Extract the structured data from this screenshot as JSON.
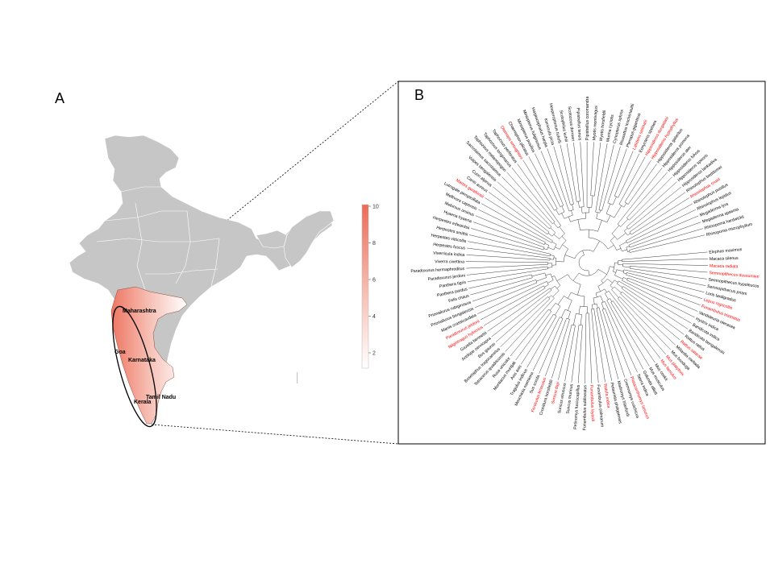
{
  "panels": {
    "a_label": "A",
    "b_label": "B"
  },
  "map": {
    "state_labels": [
      "Maharashtra",
      "Goa",
      "Karnataka",
      "Tamil Nadu",
      "Kerala"
    ],
    "colorbar": {
      "ticks": [
        "10",
        "8",
        "6",
        "4",
        "2"
      ],
      "min": 1,
      "max": 10
    }
  },
  "tree": {
    "colors": {
      "normal": "#000000",
      "highlight": "#ff0000"
    },
    "species": [
      {
        "name": "Elephas maximus",
        "hl": false
      },
      {
        "name": "Macaca silenus",
        "hl": false
      },
      {
        "name": "Macaca radiata",
        "hl": true
      },
      {
        "name": "Semnopithecus dussumieri",
        "hl": true
      },
      {
        "name": "Semnopithecus hypoleucos",
        "hl": false
      },
      {
        "name": "Semnopithecus priam",
        "hl": false
      },
      {
        "name": "Loris tardigradus",
        "hl": false
      },
      {
        "name": "Lepus nigricollis",
        "hl": true
      },
      {
        "name": "Funambulus tristriatus",
        "hl": true
      },
      {
        "name": "Vandeleuria oleracea",
        "hl": false
      },
      {
        "name": "Hystrix indica",
        "hl": false
      },
      {
        "name": "Bandicota indica",
        "hl": false
      },
      {
        "name": "Bandicota bengalensis",
        "hl": false
      },
      {
        "name": "Rattus rattus",
        "hl": false
      },
      {
        "name": "Rattus satarae",
        "hl": true
      },
      {
        "name": "Millardia meltada",
        "hl": false
      },
      {
        "name": "Mus booduga",
        "hl": false
      },
      {
        "name": "Mus platythrix",
        "hl": true
      },
      {
        "name": "Mus famulus",
        "hl": true
      },
      {
        "name": "Mus cookii",
        "hl": false
      },
      {
        "name": "Mus musculus",
        "hl": false
      },
      {
        "name": "Golunda ellioti",
        "hl": false
      },
      {
        "name": "Tatera indica",
        "hl": false
      },
      {
        "name": "Platacanthomys lasiurus",
        "hl": true
      },
      {
        "name": "Cremnomys cutchicus",
        "hl": false
      },
      {
        "name": "Madromys blanfordi",
        "hl": false
      },
      {
        "name": "Petaurista philippensis",
        "hl": false
      },
      {
        "name": "Ratufa indica",
        "hl": true
      },
      {
        "name": "Funambulus palmarum",
        "hl": false
      },
      {
        "name": "Funambulus layardi",
        "hl": true
      },
      {
        "name": "Funambulus sublineatus",
        "hl": false
      },
      {
        "name": "Petinomys fuscocapillus",
        "hl": false
      },
      {
        "name": "Suncus murinus",
        "hl": false
      },
      {
        "name": "Suncus etruscus",
        "hl": false
      },
      {
        "name": "Suncus dayi",
        "hl": true
      },
      {
        "name": "Crocidura horsfieldii",
        "hl": false
      },
      {
        "name": "Feroculus feroculus",
        "hl": true
      },
      {
        "name": "Sus scrofa",
        "hl": false
      },
      {
        "name": "Moschiola meminna",
        "hl": false
      },
      {
        "name": "Tragulus indicus",
        "hl": false
      },
      {
        "name": "Axis axis",
        "hl": false
      },
      {
        "name": "Muntiacus muntjak",
        "hl": false
      },
      {
        "name": "Rusa unicolor",
        "hl": false
      },
      {
        "name": "Tetracerus quadricornis",
        "hl": false
      },
      {
        "name": "Boselaphus tragocamelus",
        "hl": false
      },
      {
        "name": "Bos gaurus",
        "hl": false
      },
      {
        "name": "Antilope cervicapra",
        "hl": false
      },
      {
        "name": "Gazella bennettii",
        "hl": false
      },
      {
        "name": "Nilgiritragus hylocrius",
        "hl": true
      },
      {
        "name": "Paradoxurus jerdoni",
        "hl": true
      },
      {
        "name": "Manis crassicaudata",
        "hl": false
      },
      {
        "name": "Prionailurus bengalensis",
        "hl": false
      },
      {
        "name": "Prionailurus rubiginosus",
        "hl": false
      },
      {
        "name": "Felis chaus",
        "hl": false
      },
      {
        "name": "Panthera pardus",
        "hl": false
      },
      {
        "name": "Panthera tigris",
        "hl": false
      },
      {
        "name": "Paradoxurus jerdoni",
        "hl": false
      },
      {
        "name": "Paradoxurus hermaphroditus",
        "hl": false
      },
      {
        "name": "Viverra civettina",
        "hl": false
      },
      {
        "name": "Viverricula indica",
        "hl": false
      },
      {
        "name": "Herpestes fuscus",
        "hl": false
      },
      {
        "name": "Herpestes vitticollis",
        "hl": false
      },
      {
        "name": "Herpestes smithii",
        "hl": false
      },
      {
        "name": "Herpestes edwardsii",
        "hl": false
      },
      {
        "name": "Hyaena hyaena",
        "hl": false
      },
      {
        "name": "Melursus ursinus",
        "hl": false
      },
      {
        "name": "Mellivora capensis",
        "hl": false
      },
      {
        "name": "Lutrogale perspicillata",
        "hl": false
      },
      {
        "name": "Martes gwatkinsii",
        "hl": true
      },
      {
        "name": "Canis aureus",
        "hl": false
      },
      {
        "name": "Cuon alpinus",
        "hl": false
      },
      {
        "name": "Vulpes bengalensis",
        "hl": false
      },
      {
        "name": "Saccolaimus saccolaimus",
        "hl": false
      },
      {
        "name": "Taphozous melanopogon",
        "hl": false
      },
      {
        "name": "Taphozous longimanus",
        "hl": false
      },
      {
        "name": "Taphozous perforatus",
        "hl": false
      },
      {
        "name": "Otomops wroughtoni",
        "hl": true
      },
      {
        "name": "Chaerephon plicatus",
        "hl": false
      },
      {
        "name": "Miniopterus pusillus",
        "hl": false
      },
      {
        "name": "Miniopterus fuliginosus",
        "hl": false
      },
      {
        "name": "Harpiocephalus harpia",
        "hl": false
      },
      {
        "name": "Kerivoula picta",
        "hl": false
      },
      {
        "name": "Hesperoptenus tickelli",
        "hl": false
      },
      {
        "name": "Scotophilus kuhlii",
        "hl": false
      },
      {
        "name": "Scotozous dormeri",
        "hl": false
      },
      {
        "name": "Pipistrellus tenuis",
        "hl": false
      },
      {
        "name": "Pipistrellus coromandra",
        "hl": false
      },
      {
        "name": "Myotis montivagus",
        "hl": false
      },
      {
        "name": "Myotis horsfieldii",
        "hl": false
      },
      {
        "name": "Murina cyclotis",
        "hl": false
      },
      {
        "name": "Cynopterus sphinx",
        "hl": false
      },
      {
        "name": "Rousettus leschenaultii",
        "hl": false
      },
      {
        "name": "Pteropus giganteus",
        "hl": false
      },
      {
        "name": "Latidens salimalii",
        "hl": true
      },
      {
        "name": "Eonycteris spelaea",
        "hl": false
      },
      {
        "name": "Hipposideros durgadasi",
        "hl": true
      },
      {
        "name": "Hipposideros hypophyllus",
        "hl": true
      },
      {
        "name": "Hipposideros galeritus",
        "hl": false
      },
      {
        "name": "Hipposideros pomona",
        "hl": false
      },
      {
        "name": "Hipposideros ater",
        "hl": false
      },
      {
        "name": "Hipposideros fulvus",
        "hl": false
      },
      {
        "name": "Hipposideros speoris",
        "hl": false
      },
      {
        "name": "Hipposideros lankadiva",
        "hl": false
      },
      {
        "name": "Rhinolophus beddomei",
        "hl": false
      },
      {
        "name": "Rhinolophus rouxii",
        "hl": true
      },
      {
        "name": "Rhinolophus pusillus",
        "hl": false
      },
      {
        "name": "Rhinolophus lepidus",
        "hl": false
      },
      {
        "name": "Megaderma lyra",
        "hl": false
      },
      {
        "name": "Megaderma spasma",
        "hl": false
      },
      {
        "name": "Rhinopoma hardwickii",
        "hl": false
      },
      {
        "name": "Rhinopoma microphyllum",
        "hl": false
      }
    ]
  }
}
